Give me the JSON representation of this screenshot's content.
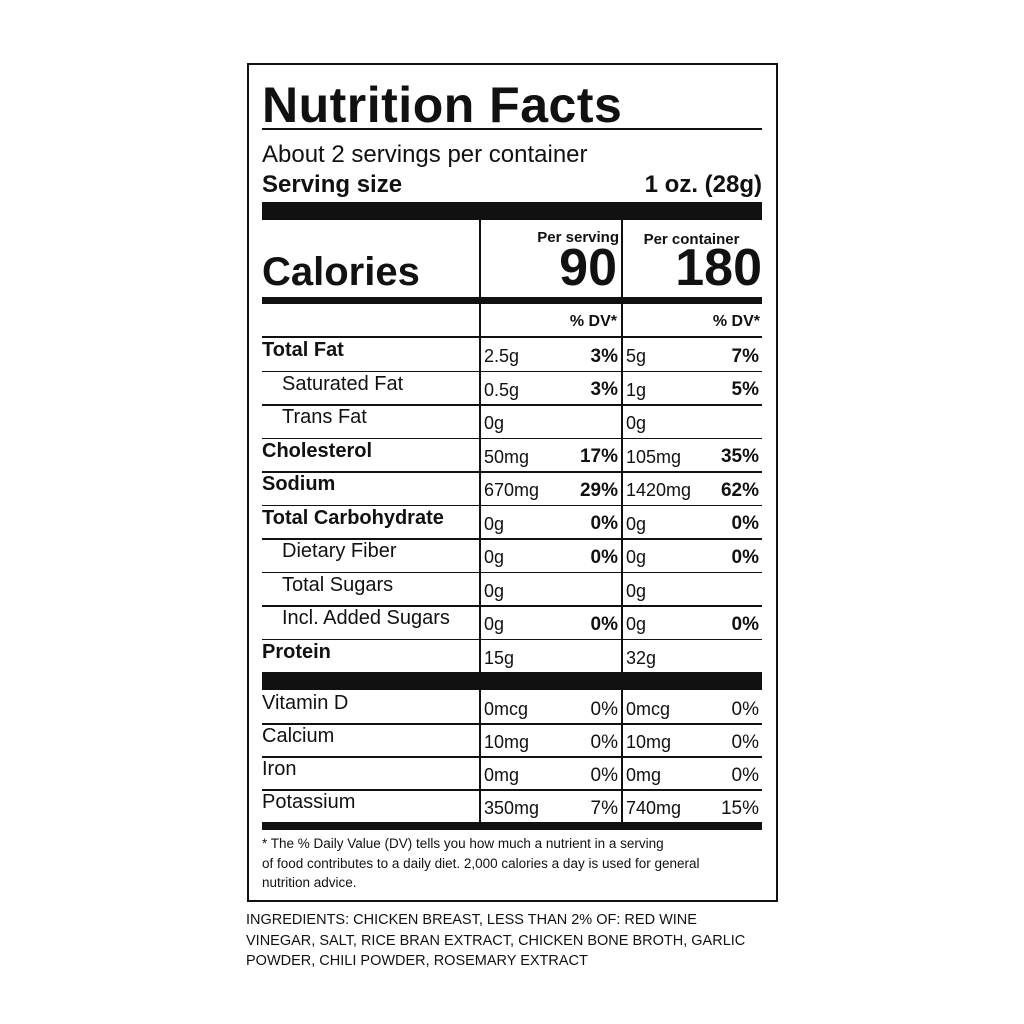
{
  "title": "Nutrition Facts",
  "servings": "About 2 servings per container",
  "serving_size": {
    "label": "Serving size",
    "value": "1 oz. (28g)"
  },
  "columns": [
    "Per serving",
    "Per container"
  ],
  "calories": {
    "label": "Calories",
    "values": [
      "90",
      "180"
    ]
  },
  "dv_header": [
    "% DV*",
    "% DV*"
  ],
  "nutrients": [
    {
      "name": "Total Fat",
      "bold": true,
      "serving": [
        "2.5g",
        "3%"
      ],
      "container": [
        "5g",
        "7%"
      ]
    },
    {
      "name": "Saturated Fat",
      "indent": true,
      "serving": [
        "0.5g",
        "3%"
      ],
      "container": [
        "1g",
        "5%"
      ]
    },
    {
      "name": "Trans Fat",
      "indent": true,
      "serving": [
        "0g"
      ],
      "container": [
        "0g"
      ]
    },
    {
      "name": "Cholesterol",
      "bold": true,
      "serving": [
        "50mg",
        "17%"
      ],
      "container": [
        "105mg",
        "35%"
      ]
    },
    {
      "name": "Sodium",
      "bold": true,
      "serving": [
        "670mg",
        "29%"
      ],
      "container": [
        "1420mg",
        "62%"
      ]
    },
    {
      "name": "Total Carbohydrate",
      "bold": true,
      "serving": [
        "0g",
        "0%"
      ],
      "container": [
        "0g",
        "0%"
      ]
    },
    {
      "name": "Dietary Fiber",
      "indent": true,
      "serving": [
        "0g",
        "0%"
      ],
      "container": [
        "0g",
        "0%"
      ]
    },
    {
      "name": "Total Sugars",
      "indent": true,
      "serving": [
        "0g"
      ],
      "container": [
        "0g"
      ]
    },
    {
      "name": "Incl. Added Sugars",
      "indent": true,
      "serving": [
        "0g",
        "0%"
      ],
      "container": [
        "0g",
        "0%"
      ]
    },
    {
      "name": "Protein",
      "bold": true,
      "serving": [
        "15g"
      ],
      "container": [
        "32g"
      ]
    }
  ],
  "vitamins": [
    {
      "name": "Vitamin D",
      "serving": [
        "0mcg",
        "0%"
      ],
      "container": [
        "0mcg",
        "0%"
      ]
    },
    {
      "name": "Calcium",
      "serving": [
        "10mg",
        "0%"
      ],
      "container": [
        "10mg",
        "0%"
      ]
    },
    {
      "name": "Iron",
      "serving": [
        "0mg",
        "0%"
      ],
      "container": [
        "0mg",
        "0%"
      ]
    },
    {
      "name": "Potassium",
      "serving": [
        "350mg",
        "7%"
      ],
      "container": [
        "740mg",
        "15%"
      ]
    }
  ],
  "footnote": [
    "* The % Daily Value (DV) tells you how much a nutrient in a serving",
    "of food contributes to a daily diet. 2,000 calories a day is used for general",
    "nutrition advice."
  ],
  "ingredients": [
    "INGREDIENTS: CHICKEN BREAST, LESS THAN 2% OF: RED WINE",
    "VINEGAR, SALT, RICE BRAN EXTRACT, CHICKEN BONE BROTH, GARLIC",
    "POWDER, CHILI POWDER, ROSEMARY EXTRACT"
  ]
}
